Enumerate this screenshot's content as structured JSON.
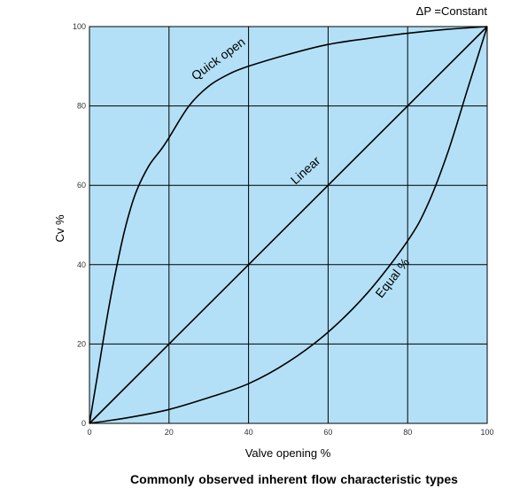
{
  "colors": {
    "plot_background": "#b3e0f7",
    "grid": "#000000",
    "curve": "#000000"
  },
  "annotation": "ΔP =Constant",
  "caption": "Commonly observed inherent flow characteristic types",
  "chart_data": {
    "type": "line",
    "title": "",
    "xlabel": "Valve opening %",
    "ylabel": "Cv %",
    "xlim": [
      0,
      100
    ],
    "ylim": [
      0,
      100
    ],
    "xticks": [
      0,
      20,
      40,
      60,
      80,
      100
    ],
    "yticks": [
      0,
      20,
      40,
      60,
      80,
      100
    ],
    "grid": true,
    "legend": "none",
    "series": [
      {
        "name": "Quick open",
        "x": [
          0,
          2,
          5,
          8,
          10,
          12,
          15,
          18,
          20,
          25,
          30,
          35,
          40,
          50,
          60,
          70,
          80,
          90,
          100
        ],
        "y": [
          0,
          12,
          30,
          45,
          53,
          59,
          65,
          69,
          72,
          80,
          85,
          88,
          90,
          93,
          95.5,
          97,
          98.3,
          99.3,
          100
        ]
      },
      {
        "name": "Linear",
        "x": [
          0,
          100
        ],
        "y": [
          0,
          100
        ]
      },
      {
        "name": "Equal %",
        "x": [
          0,
          10,
          20,
          30,
          40,
          50,
          60,
          70,
          80,
          85,
          90,
          95,
          100
        ],
        "y": [
          0,
          1.5,
          3.5,
          6.5,
          10,
          15.5,
          23,
          33,
          46,
          55,
          68,
          84,
          100
        ]
      }
    ]
  }
}
